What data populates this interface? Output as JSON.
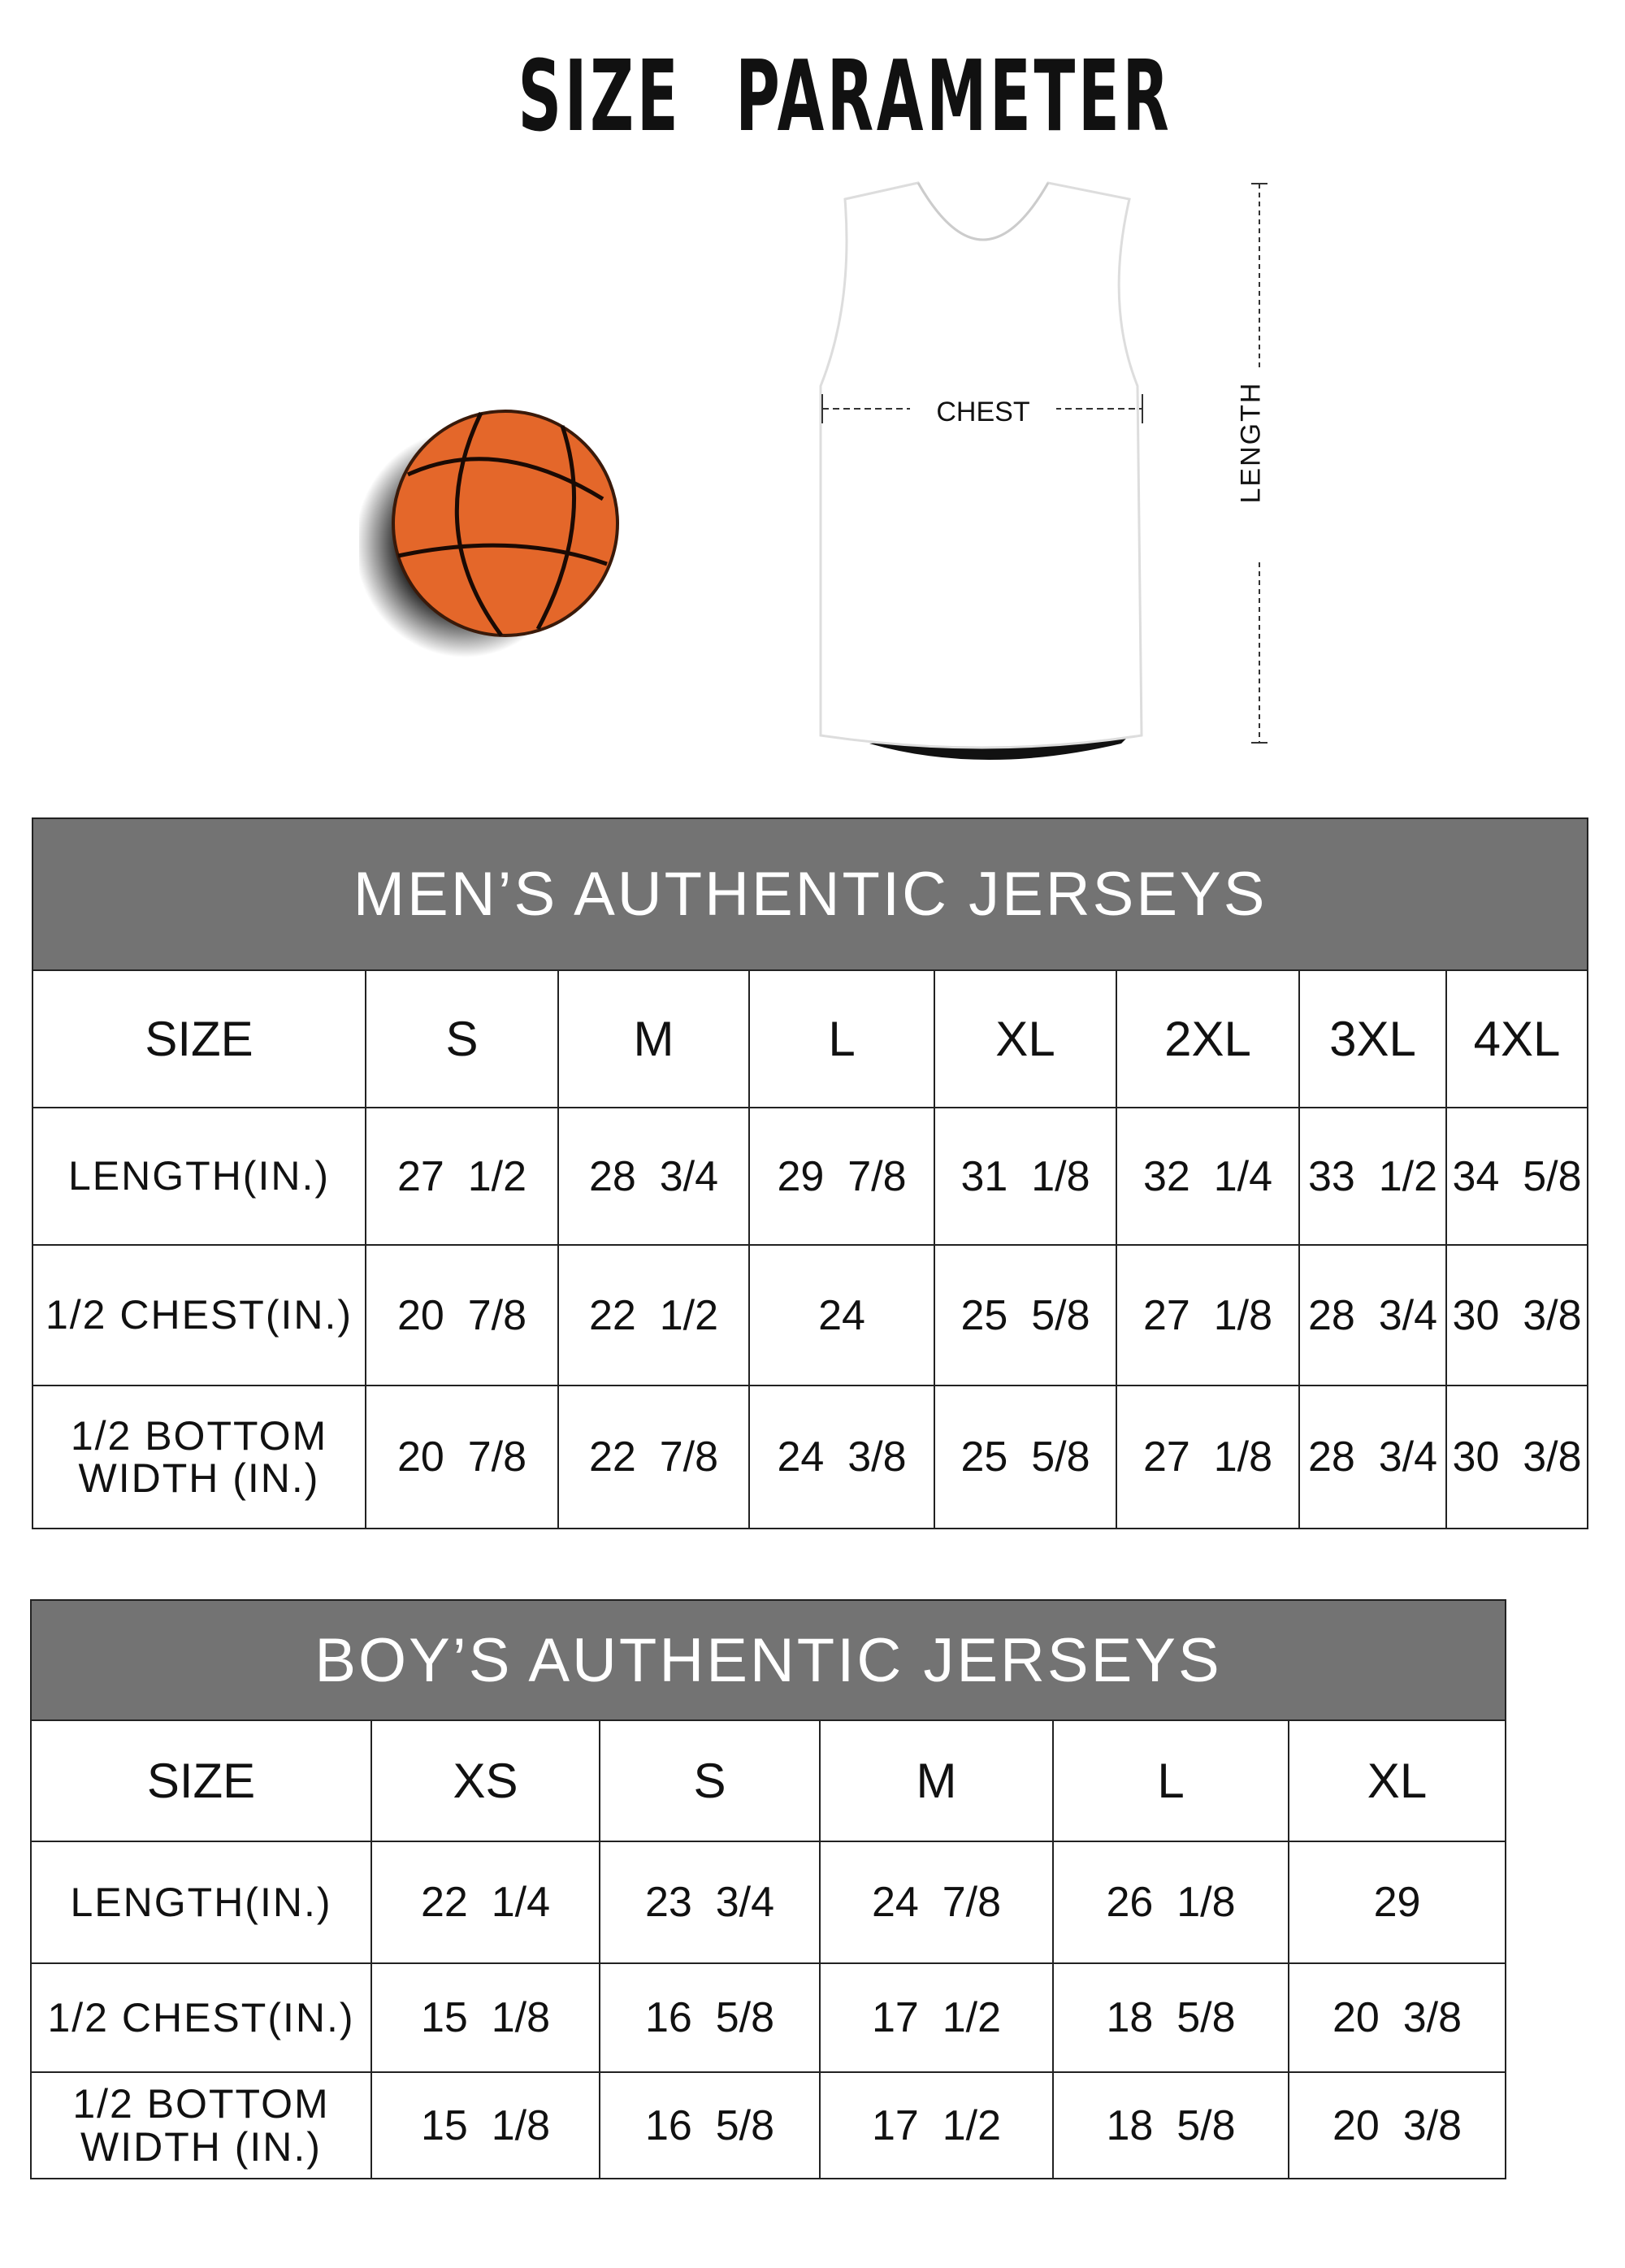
{
  "title": "SIZE PARAMETER",
  "diagram": {
    "chest_label": "CHEST",
    "length_label": "LENGTH",
    "ball_color": "#E4672A"
  },
  "colors": {
    "header_band": "#737373"
  },
  "men": {
    "title": "MEN’S AUTHENTIC JERSEYS",
    "size_label": "SIZE",
    "sizes": [
      "S",
      "M",
      "L",
      "XL",
      "2XL",
      "3XL",
      "4XL"
    ],
    "rows": [
      {
        "label": "LENGTH(IN.)",
        "values": [
          "27  1/2",
          "28  3/4",
          "29  7/8",
          "31  1/8",
          "32  1/4",
          "33  1/2",
          "34  5/8"
        ]
      },
      {
        "label": "1/2 CHEST(IN.)",
        "values": [
          "20  7/8",
          "22  1/2",
          "24",
          "25  5/8",
          "27  1/8",
          "28  3/4",
          "30  3/8"
        ]
      },
      {
        "label": "1/2 BOTTOM WIDTH  (IN.)",
        "values": [
          "20  7/8",
          "22  7/8",
          "24  3/8",
          "25  5/8",
          "27  1/8",
          "28  3/4",
          "30  3/8"
        ]
      }
    ]
  },
  "boy": {
    "title": "BOY’S AUTHENTIC JERSEYS",
    "size_label": "SIZE",
    "sizes": [
      "XS",
      "S",
      "M",
      "L",
      "XL"
    ],
    "rows": [
      {
        "label": "LENGTH(IN.)",
        "values": [
          "22  1/4",
          "23  3/4",
          "24  7/8",
          "26  1/8",
          "29"
        ]
      },
      {
        "label": "1/2 CHEST(IN.)",
        "values": [
          "15  1/8",
          "16  5/8",
          "17  1/2",
          "18  5/8",
          "20  3/8"
        ]
      },
      {
        "label": "1/2 BOTTOM WIDTH  (IN.)",
        "values": [
          "15  1/8",
          "16  5/8",
          "17  1/2",
          "18  5/8",
          "20  3/8"
        ]
      }
    ]
  }
}
